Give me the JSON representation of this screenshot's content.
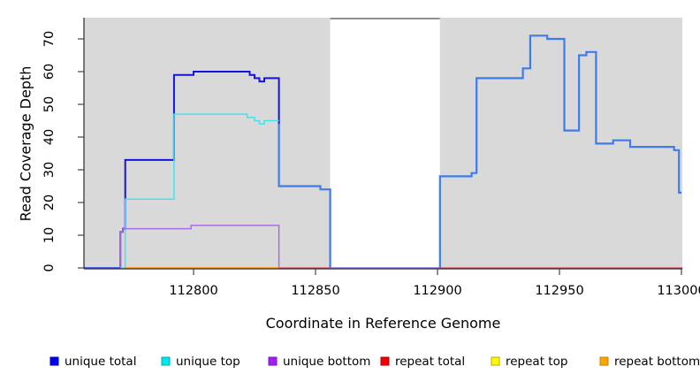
{
  "chart_data": {
    "type": "line",
    "subtype": "step-coverage-profile",
    "title": "",
    "xlabel": "Coordinate in Reference Genome",
    "ylabel": "Read Coverage Depth",
    "xlim": [
      112755,
      113000.5
    ],
    "ylim": [
      0,
      76.5
    ],
    "grid": false,
    "xticks": [
      112800,
      112850,
      112900,
      112950,
      113000
    ],
    "xtick_labels": [
      "112800",
      "112850",
      "112900",
      "112950",
      "113000"
    ],
    "yticks": [
      0,
      10,
      20,
      30,
      40,
      50,
      60,
      70
    ],
    "ytick_labels": [
      "0",
      "10",
      "20",
      "30",
      "40",
      "50",
      "60",
      "70"
    ],
    "background_regions": [
      {
        "name": "covered-block-left",
        "x0": 112755,
        "x1": 112856,
        "color": "#d9d9d9"
      },
      {
        "name": "alignment-gap",
        "x0": 112856,
        "x1": 112901,
        "color": "#ffffff"
      },
      {
        "name": "covered-block-right",
        "x0": 112901,
        "x1": 113000.5,
        "color": "#d9d9d9"
      }
    ],
    "gap_top_line": {
      "x0": 112856,
      "x1": 112901,
      "color": "#8f8f8f"
    },
    "series": [
      {
        "key": "total-mid",
        "legend": "unique total",
        "color": "#3d7ceb",
        "width": 2.2,
        "points": [
          [
            112835,
            44
          ],
          [
            112835,
            25
          ],
          [
            112852,
            25
          ],
          [
            112852,
            24
          ],
          [
            112856,
            24
          ],
          [
            112856,
            0
          ]
        ]
      },
      {
        "key": "total-right",
        "legend": "unique total",
        "color": "#3d7ceb",
        "width": 2.2,
        "points": [
          [
            112901,
            0
          ],
          [
            112901,
            28
          ],
          [
            112914,
            28
          ],
          [
            112914,
            29
          ],
          [
            112916,
            29
          ],
          [
            112916,
            58
          ],
          [
            112935,
            58
          ],
          [
            112935,
            61
          ],
          [
            112938,
            61
          ],
          [
            112938,
            71
          ],
          [
            112945,
            71
          ],
          [
            112945,
            70
          ],
          [
            112952,
            70
          ],
          [
            112952,
            42
          ],
          [
            112958,
            42
          ],
          [
            112958,
            65
          ],
          [
            112961,
            65
          ],
          [
            112961,
            66
          ],
          [
            112965,
            66
          ],
          [
            112965,
            38
          ],
          [
            112972,
            38
          ],
          [
            112972,
            39
          ],
          [
            112979,
            39
          ],
          [
            112979,
            37
          ],
          [
            112997,
            37
          ],
          [
            112997,
            36
          ],
          [
            112999,
            36
          ],
          [
            112999,
            23
          ],
          [
            113000,
            23
          ]
        ]
      },
      {
        "key": "unique-total",
        "legend": "unique total",
        "color": "#1414dd",
        "width": 2,
        "points": [
          [
            112755,
            0
          ],
          [
            112770,
            0
          ],
          [
            112770,
            11
          ],
          [
            112771,
            11
          ],
          [
            112771,
            12
          ],
          [
            112772,
            12
          ],
          [
            112772,
            33
          ],
          [
            112792,
            33
          ],
          [
            112792,
            59
          ],
          [
            112800,
            59
          ],
          [
            112800,
            60
          ],
          [
            112823,
            60
          ],
          [
            112823,
            59
          ],
          [
            112825,
            59
          ],
          [
            112825,
            58
          ],
          [
            112827,
            58
          ],
          [
            112827,
            57
          ],
          [
            112829,
            57
          ],
          [
            112829,
            58
          ],
          [
            112835,
            58
          ],
          [
            112835,
            44
          ]
        ]
      },
      {
        "key": "unique-top",
        "legend": "unique top",
        "color": "#45e2ea",
        "width": 1.5,
        "points": [
          [
            112755,
            0
          ],
          [
            112772,
            0
          ],
          [
            112772,
            21
          ],
          [
            112792,
            21
          ],
          [
            112792,
            47
          ],
          [
            112822,
            47
          ],
          [
            112822,
            46
          ],
          [
            112825,
            46
          ],
          [
            112825,
            45
          ],
          [
            112827,
            45
          ],
          [
            112827,
            44
          ],
          [
            112829,
            44
          ],
          [
            112829,
            45
          ],
          [
            112835,
            45
          ]
        ]
      },
      {
        "key": "unique-bottom",
        "legend": "unique bottom",
        "color": "#a76ee3",
        "width": 1.5,
        "points": [
          [
            112770,
            0
          ],
          [
            112770,
            11
          ],
          [
            112771,
            11
          ],
          [
            112771,
            12
          ],
          [
            112799,
            12
          ],
          [
            112799,
            13
          ],
          [
            112835,
            13
          ],
          [
            112835,
            0
          ]
        ]
      },
      {
        "key": "baseline-left",
        "legend": null,
        "color": "#5c55e3",
        "width": 1.5,
        "points": [
          [
            112755,
            0
          ],
          [
            112770,
            0
          ]
        ]
      },
      {
        "key": "repeat-total",
        "legend": "repeat total",
        "color": "#dd4466",
        "width": 1.3,
        "points": [
          [
            112835,
            0
          ],
          [
            113000.5,
            0
          ]
        ]
      },
      {
        "key": "gap-baseline",
        "legend": null,
        "color": "#8b7cee",
        "width": 1.5,
        "points": [
          [
            112856,
            0
          ],
          [
            112901,
            0
          ]
        ]
      },
      {
        "key": "repeat-bottom",
        "legend": "repeat bottom",
        "color": "#ff9d22",
        "width": 1.8,
        "points": [
          [
            112772,
            0
          ],
          [
            112835,
            0
          ]
        ]
      }
    ],
    "legend_position": "bottom",
    "legend": [
      {
        "label": "unique total",
        "fill": "#0000f0",
        "border": "#0000b4"
      },
      {
        "label": "unique top",
        "fill": "#00e6ee",
        "border": "#00a9b4"
      },
      {
        "label": "unique bottom",
        "fill": "#a020f0",
        "border": "#7a14bc"
      },
      {
        "label": "repeat total",
        "fill": "#f00000",
        "border": "#b40000"
      },
      {
        "label": "repeat top",
        "fill": "#fcfc00",
        "border": "#c2a800"
      },
      {
        "label": "repeat bottom",
        "fill": "#ffa500",
        "border": "#c87d00"
      }
    ]
  },
  "axes": {
    "x_label": "Coordinate in Reference Genome",
    "y_label": "Read Coverage Depth"
  }
}
